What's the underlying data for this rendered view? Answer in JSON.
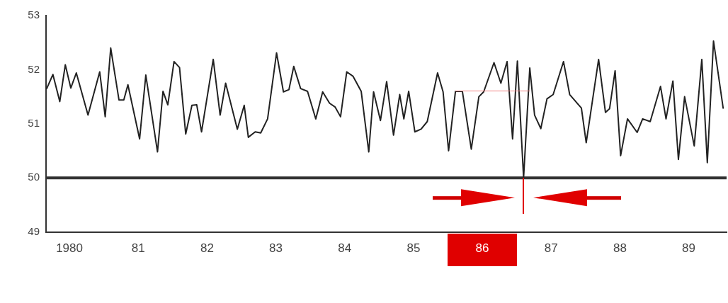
{
  "chart_data": {
    "type": "line",
    "x": [
      1979.67,
      1979.76,
      1979.86,
      1979.94,
      1980.02,
      1980.1,
      1980.27,
      1980.44,
      1980.52,
      1980.6,
      1980.72,
      1980.79,
      1980.85,
      1981.02,
      1981.11,
      1981.28,
      1981.36,
      1981.43,
      1981.52,
      1981.6,
      1981.69,
      1981.78,
      1981.85,
      1981.92,
      1982.09,
      1982.19,
      1982.27,
      1982.44,
      1982.54,
      1982.6,
      1982.7,
      1982.78,
      1982.88,
      1983.01,
      1983.11,
      1983.19,
      1983.26,
      1983.36,
      1983.46,
      1983.58,
      1983.68,
      1983.78,
      1983.86,
      1983.94,
      1984.03,
      1984.12,
      1984.24,
      1984.35,
      1984.42,
      1984.52,
      1984.61,
      1984.71,
      1984.8,
      1984.86,
      1984.93,
      1985.02,
      1985.11,
      1985.2,
      1985.35,
      1985.43,
      1985.51,
      1985.61,
      1985.71,
      1985.84,
      1985.95,
      1986.02,
      1986.17,
      1986.27,
      1986.36,
      1986.44,
      1986.51,
      1986.6,
      1986.69,
      1986.76,
      1986.85,
      1986.94,
      1987.03,
      1987.18,
      1987.27,
      1987.44,
      1987.51,
      1987.69,
      1987.79,
      1987.85,
      1987.93,
      1988.01,
      1988.11,
      1988.25,
      1988.33,
      1988.44,
      1988.59,
      1988.67,
      1988.77,
      1988.85,
      1988.94,
      1989.08,
      1989.19,
      1989.27,
      1989.36,
      1989.5
    ],
    "series": [
      {
        "color": "#222222",
        "values": [
          51.65,
          51.91,
          51.41,
          52.09,
          51.66,
          51.94,
          51.16,
          51.96,
          51.13,
          52.4,
          51.44,
          51.44,
          51.72,
          50.72,
          51.9,
          50.48,
          51.6,
          51.35,
          52.15,
          52.04,
          50.81,
          51.34,
          51.35,
          50.85,
          52.19,
          51.16,
          51.75,
          50.9,
          51.34,
          50.75,
          50.85,
          50.83,
          51.09,
          52.31,
          51.59,
          51.63,
          52.06,
          51.65,
          51.6,
          51.09,
          51.59,
          51.38,
          51.31,
          51.13,
          51.96,
          51.88,
          51.6,
          50.48,
          51.59,
          51.06,
          51.78,
          50.79,
          51.54,
          51.09,
          51.6,
          50.85,
          50.9,
          51.04,
          51.94,
          51.59,
          50.5,
          51.6,
          51.6,
          50.53,
          51.5,
          51.59,
          52.13,
          51.75,
          52.15,
          50.72,
          52.16,
          50.0,
          52.03,
          51.16,
          50.91,
          51.46,
          51.54,
          52.15,
          51.54,
          51.29,
          50.65,
          52.19,
          51.21,
          51.28,
          51.98,
          50.41,
          51.09,
          50.84,
          51.09,
          51.04,
          51.69,
          51.09,
          51.79,
          50.34,
          51.5,
          50.59,
          52.19,
          50.28,
          52.53,
          51.29
        ]
      }
    ],
    "xlim": [
      1979.66,
      1989.55
    ],
    "xticks": [
      1980,
      {
        "value": 1981,
        "label": "81"
      },
      {
        "value": 1982,
        "label": "82"
      },
      {
        "value": 1983,
        "label": "83"
      },
      {
        "value": 1984,
        "label": "84"
      },
      {
        "value": 1985,
        "label": "85"
      },
      {
        "value": 1986,
        "label": "86"
      },
      {
        "value": 1987,
        "label": "87"
      },
      {
        "value": 1988,
        "label": "88"
      },
      {
        "value": 1989,
        "label": "89"
      }
    ],
    "ylim": [
      49,
      53
    ],
    "yticks": [
      49,
      50,
      51,
      52,
      53
    ],
    "ref_lines": [
      {
        "axis": "y",
        "value": 50,
        "color": "#333333"
      }
    ],
    "grid": false,
    "legend": false
  }
}
